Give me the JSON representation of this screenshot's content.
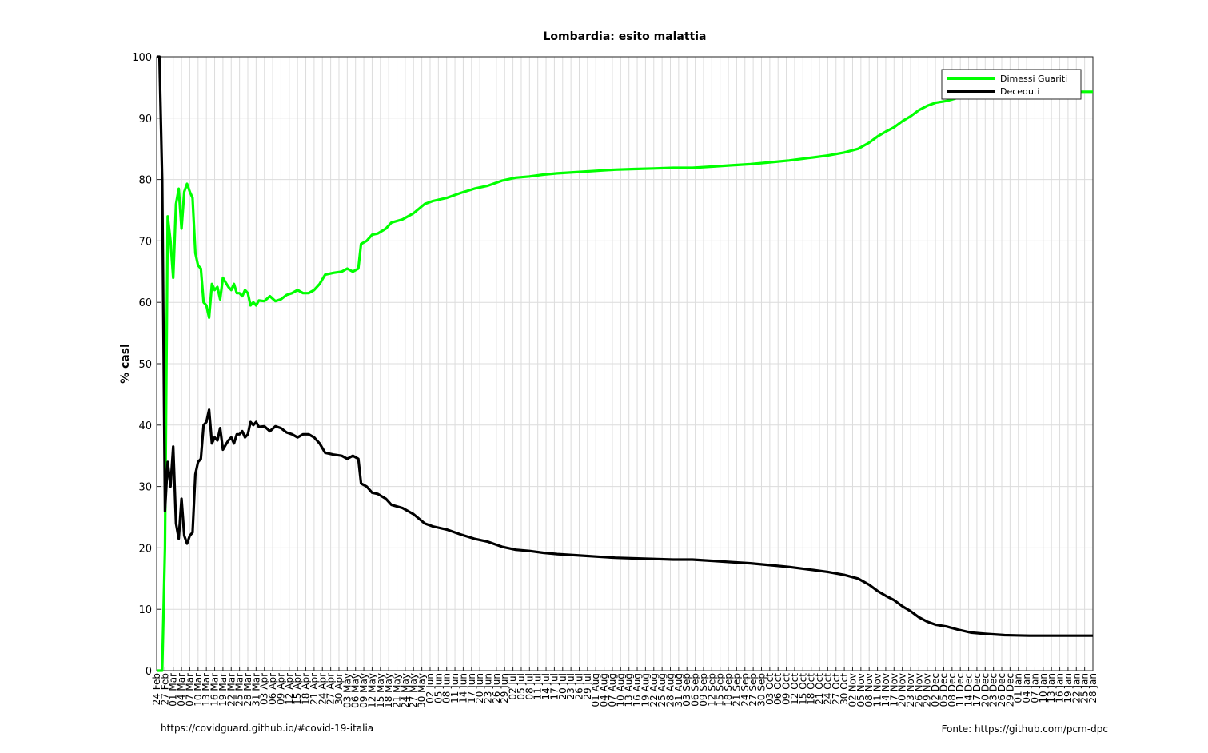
{
  "chart_data": {
    "type": "line",
    "title": "Lombardia: esito malattia",
    "xlabel": "",
    "ylabel": "% casi",
    "ylim": [
      0,
      100
    ],
    "yticks": [
      0,
      10,
      20,
      30,
      40,
      50,
      60,
      70,
      80,
      90,
      100
    ],
    "xlim": [
      "2020-02-24",
      "2021-01-28"
    ],
    "grid": true,
    "legend_position": "top-right",
    "xtick_labels": [
      "24 Feb",
      "27 Feb",
      "01 Mar",
      "04 Mar",
      "07 Mar",
      "10 Mar",
      "13 Mar",
      "16 Mar",
      "19 Mar",
      "22 Mar",
      "25 Mar",
      "28 Mar",
      "31 Mar",
      "03 Apr",
      "06 Apr",
      "09 Apr",
      "12 Apr",
      "15 Apr",
      "18 Apr",
      "21 Apr",
      "24 Apr",
      "27 Apr",
      "30 Apr",
      "03 May",
      "06 May",
      "09 May",
      "12 May",
      "15 May",
      "18 May",
      "21 May",
      "24 May",
      "27 May",
      "30 May",
      "02 Jun",
      "05 Jun",
      "08 Jun",
      "11 Jun",
      "14 Jun",
      "17 Jun",
      "20 Jun",
      "23 Jun",
      "26 Jun",
      "29 Jun",
      "02 Jul",
      "05 Jul",
      "08 Jul",
      "11 Jul",
      "14 Jul",
      "17 Jul",
      "20 Jul",
      "23 Jul",
      "26 Jul",
      "29 Jul",
      "01 Aug",
      "04 Aug",
      "07 Aug",
      "10 Aug",
      "13 Aug",
      "16 Aug",
      "19 Aug",
      "22 Aug",
      "25 Aug",
      "28 Aug",
      "31 Aug",
      "03 Sep",
      "06 Sep",
      "09 Sep",
      "12 Sep",
      "15 Sep",
      "18 Sep",
      "21 Sep",
      "24 Sep",
      "27 Sep",
      "30 Sep",
      "03 Oct",
      "06 Oct",
      "09 Oct",
      "12 Oct",
      "15 Oct",
      "18 Oct",
      "21 Oct",
      "24 Oct",
      "27 Oct",
      "30 Oct",
      "02 Nov",
      "05 Nov",
      "08 Nov",
      "11 Nov",
      "14 Nov",
      "17 Nov",
      "20 Nov",
      "23 Nov",
      "26 Nov",
      "29 Nov",
      "02 Dec",
      "05 Dec",
      "08 Dec",
      "11 Dec",
      "14 Dec",
      "17 Dec",
      "20 Dec",
      "23 Dec",
      "26 Dec",
      "29 Dec",
      "01 Jan",
      "04 Jan",
      "07 Jan",
      "10 Jan",
      "13 Jan",
      "16 Jan",
      "19 Jan",
      "22 Jan",
      "25 Jan",
      "28 Jan"
    ],
    "series": [
      {
        "name": "Dimessi Guariti",
        "color": "#00ff00",
        "points": [
          [
            "2020-02-24",
            0
          ],
          [
            "2020-02-25",
            0
          ],
          [
            "2020-02-26",
            0
          ],
          [
            "2020-02-27",
            20
          ],
          [
            "2020-02-28",
            74
          ],
          [
            "2020-02-29",
            70
          ],
          [
            "2020-03-01",
            64
          ],
          [
            "2020-03-02",
            76
          ],
          [
            "2020-03-03",
            78.5
          ],
          [
            "2020-03-04",
            72
          ],
          [
            "2020-03-05",
            78
          ],
          [
            "2020-03-06",
            79.3
          ],
          [
            "2020-03-07",
            78
          ],
          [
            "2020-03-08",
            77
          ],
          [
            "2020-03-09",
            68
          ],
          [
            "2020-03-10",
            66
          ],
          [
            "2020-03-11",
            65.5
          ],
          [
            "2020-03-12",
            60
          ],
          [
            "2020-03-13",
            59.5
          ],
          [
            "2020-03-14",
            57.5
          ],
          [
            "2020-03-15",
            63
          ],
          [
            "2020-03-16",
            62
          ],
          [
            "2020-03-17",
            62.5
          ],
          [
            "2020-03-18",
            60.5
          ],
          [
            "2020-03-19",
            64
          ],
          [
            "2020-03-20",
            63.2
          ],
          [
            "2020-03-21",
            62.5
          ],
          [
            "2020-03-22",
            62
          ],
          [
            "2020-03-23",
            63
          ],
          [
            "2020-03-24",
            61.5
          ],
          [
            "2020-03-25",
            61.5
          ],
          [
            "2020-03-26",
            61
          ],
          [
            "2020-03-27",
            62
          ],
          [
            "2020-03-28",
            61.5
          ],
          [
            "2020-03-29",
            59.5
          ],
          [
            "2020-03-30",
            60
          ],
          [
            "2020-03-31",
            59.5
          ],
          [
            "2020-04-01",
            60.3
          ],
          [
            "2020-04-03",
            60.2
          ],
          [
            "2020-04-05",
            61
          ],
          [
            "2020-04-07",
            60.2
          ],
          [
            "2020-04-09",
            60.5
          ],
          [
            "2020-04-11",
            61.2
          ],
          [
            "2020-04-13",
            61.5
          ],
          [
            "2020-04-15",
            62
          ],
          [
            "2020-04-17",
            61.5
          ],
          [
            "2020-04-19",
            61.5
          ],
          [
            "2020-04-21",
            62
          ],
          [
            "2020-04-23",
            63
          ],
          [
            "2020-04-25",
            64.5
          ],
          [
            "2020-04-28",
            64.8
          ],
          [
            "2020-05-01",
            65
          ],
          [
            "2020-05-03",
            65.5
          ],
          [
            "2020-05-05",
            65
          ],
          [
            "2020-05-07",
            65.5
          ],
          [
            "2020-05-08",
            69.5
          ],
          [
            "2020-05-10",
            70
          ],
          [
            "2020-05-12",
            71
          ],
          [
            "2020-05-14",
            71.2
          ],
          [
            "2020-05-17",
            72
          ],
          [
            "2020-05-19",
            73
          ],
          [
            "2020-05-23",
            73.5
          ],
          [
            "2020-05-27",
            74.5
          ],
          [
            "2020-05-31",
            76
          ],
          [
            "2020-06-03",
            76.5
          ],
          [
            "2020-06-08",
            77
          ],
          [
            "2020-06-13",
            77.8
          ],
          [
            "2020-06-18",
            78.5
          ],
          [
            "2020-06-23",
            79
          ],
          [
            "2020-06-28",
            79.8
          ],
          [
            "2020-07-03",
            80.3
          ],
          [
            "2020-07-08",
            80.5
          ],
          [
            "2020-07-13",
            80.8
          ],
          [
            "2020-07-18",
            81
          ],
          [
            "2020-07-25",
            81.2
          ],
          [
            "2020-08-01",
            81.4
          ],
          [
            "2020-08-08",
            81.6
          ],
          [
            "2020-08-15",
            81.7
          ],
          [
            "2020-08-22",
            81.8
          ],
          [
            "2020-08-29",
            81.9
          ],
          [
            "2020-09-05",
            81.9
          ],
          [
            "2020-09-12",
            82.1
          ],
          [
            "2020-09-19",
            82.3
          ],
          [
            "2020-09-26",
            82.5
          ],
          [
            "2020-10-03",
            82.8
          ],
          [
            "2020-10-10",
            83.1
          ],
          [
            "2020-10-17",
            83.5
          ],
          [
            "2020-10-24",
            83.9
          ],
          [
            "2020-10-30",
            84.4
          ],
          [
            "2020-11-04",
            85
          ],
          [
            "2020-11-08",
            86
          ],
          [
            "2020-11-11",
            87
          ],
          [
            "2020-11-14",
            87.8
          ],
          [
            "2020-11-17",
            88.5
          ],
          [
            "2020-11-20",
            89.5
          ],
          [
            "2020-11-23",
            90.3
          ],
          [
            "2020-11-26",
            91.3
          ],
          [
            "2020-11-29",
            92
          ],
          [
            "2020-12-02",
            92.5
          ],
          [
            "2020-12-06",
            92.8
          ],
          [
            "2020-12-10",
            93.3
          ],
          [
            "2020-12-15",
            93.8
          ],
          [
            "2020-12-20",
            94
          ],
          [
            "2020-12-27",
            94.2
          ],
          [
            "2021-01-05",
            94.3
          ],
          [
            "2021-01-15",
            94.3
          ],
          [
            "2021-01-28",
            94.3
          ]
        ]
      },
      {
        "name": "Deceduti",
        "color": "#000000",
        "points": [
          [
            "2020-02-24",
            100
          ],
          [
            "2020-02-25",
            100
          ],
          [
            "2020-02-26",
            80
          ],
          [
            "2020-02-27",
            26
          ],
          [
            "2020-02-28",
            34
          ],
          [
            "2020-02-29",
            30
          ],
          [
            "2020-03-01",
            36.5
          ],
          [
            "2020-03-02",
            24
          ],
          [
            "2020-03-03",
            21.5
          ],
          [
            "2020-03-04",
            28
          ],
          [
            "2020-03-05",
            22
          ],
          [
            "2020-03-06",
            20.7
          ],
          [
            "2020-03-07",
            22
          ],
          [
            "2020-03-08",
            22.5
          ],
          [
            "2020-03-09",
            32
          ],
          [
            "2020-03-10",
            34
          ],
          [
            "2020-03-11",
            34.5
          ],
          [
            "2020-03-12",
            40
          ],
          [
            "2020-03-13",
            40.5
          ],
          [
            "2020-03-14",
            42.5
          ],
          [
            "2020-03-15",
            37
          ],
          [
            "2020-03-16",
            38
          ],
          [
            "2020-03-17",
            37.5
          ],
          [
            "2020-03-18",
            39.5
          ],
          [
            "2020-03-19",
            36
          ],
          [
            "2020-03-20",
            36.8
          ],
          [
            "2020-03-21",
            37.5
          ],
          [
            "2020-03-22",
            38
          ],
          [
            "2020-03-23",
            37
          ],
          [
            "2020-03-24",
            38.5
          ],
          [
            "2020-03-25",
            38.5
          ],
          [
            "2020-03-26",
            39
          ],
          [
            "2020-03-27",
            38
          ],
          [
            "2020-03-28",
            38.5
          ],
          [
            "2020-03-29",
            40.5
          ],
          [
            "2020-03-30",
            40
          ],
          [
            "2020-03-31",
            40.5
          ],
          [
            "2020-04-01",
            39.7
          ],
          [
            "2020-04-03",
            39.8
          ],
          [
            "2020-04-05",
            39
          ],
          [
            "2020-04-07",
            39.8
          ],
          [
            "2020-04-09",
            39.5
          ],
          [
            "2020-04-11",
            38.8
          ],
          [
            "2020-04-13",
            38.5
          ],
          [
            "2020-04-15",
            38
          ],
          [
            "2020-04-17",
            38.5
          ],
          [
            "2020-04-19",
            38.5
          ],
          [
            "2020-04-21",
            38
          ],
          [
            "2020-04-23",
            37
          ],
          [
            "2020-04-25",
            35.5
          ],
          [
            "2020-04-28",
            35.2
          ],
          [
            "2020-05-01",
            35
          ],
          [
            "2020-05-03",
            34.5
          ],
          [
            "2020-05-05",
            35
          ],
          [
            "2020-05-07",
            34.5
          ],
          [
            "2020-05-08",
            30.5
          ],
          [
            "2020-05-10",
            30
          ],
          [
            "2020-05-12",
            29
          ],
          [
            "2020-05-14",
            28.8
          ],
          [
            "2020-05-17",
            28
          ],
          [
            "2020-05-19",
            27
          ],
          [
            "2020-05-23",
            26.5
          ],
          [
            "2020-05-27",
            25.5
          ],
          [
            "2020-05-31",
            24
          ],
          [
            "2020-06-03",
            23.5
          ],
          [
            "2020-06-08",
            23
          ],
          [
            "2020-06-13",
            22.2
          ],
          [
            "2020-06-18",
            21.5
          ],
          [
            "2020-06-23",
            21
          ],
          [
            "2020-06-28",
            20.2
          ],
          [
            "2020-07-03",
            19.7
          ],
          [
            "2020-07-08",
            19.5
          ],
          [
            "2020-07-13",
            19.2
          ],
          [
            "2020-07-18",
            19
          ],
          [
            "2020-07-25",
            18.8
          ],
          [
            "2020-08-01",
            18.6
          ],
          [
            "2020-08-08",
            18.4
          ],
          [
            "2020-08-15",
            18.3
          ],
          [
            "2020-08-22",
            18.2
          ],
          [
            "2020-08-29",
            18.1
          ],
          [
            "2020-09-05",
            18.1
          ],
          [
            "2020-09-12",
            17.9
          ],
          [
            "2020-09-19",
            17.7
          ],
          [
            "2020-09-26",
            17.5
          ],
          [
            "2020-10-03",
            17.2
          ],
          [
            "2020-10-10",
            16.9
          ],
          [
            "2020-10-17",
            16.5
          ],
          [
            "2020-10-24",
            16.1
          ],
          [
            "2020-10-30",
            15.6
          ],
          [
            "2020-11-04",
            15
          ],
          [
            "2020-11-08",
            14
          ],
          [
            "2020-11-11",
            13
          ],
          [
            "2020-11-14",
            12.2
          ],
          [
            "2020-11-17",
            11.5
          ],
          [
            "2020-11-20",
            10.5
          ],
          [
            "2020-11-23",
            9.7
          ],
          [
            "2020-11-26",
            8.7
          ],
          [
            "2020-11-29",
            8
          ],
          [
            "2020-12-02",
            7.5
          ],
          [
            "2020-12-06",
            7.2
          ],
          [
            "2020-12-10",
            6.7
          ],
          [
            "2020-12-15",
            6.2
          ],
          [
            "2020-12-20",
            6
          ],
          [
            "2020-12-27",
            5.8
          ],
          [
            "2021-01-05",
            5.7
          ],
          [
            "2021-01-15",
            5.7
          ],
          [
            "2021-01-28",
            5.7
          ]
        ]
      }
    ]
  },
  "footer": {
    "left": "https://covidguard.github.io/#covid-19-italia",
    "right": "Fonte: https://github.com/pcm-dpc"
  }
}
